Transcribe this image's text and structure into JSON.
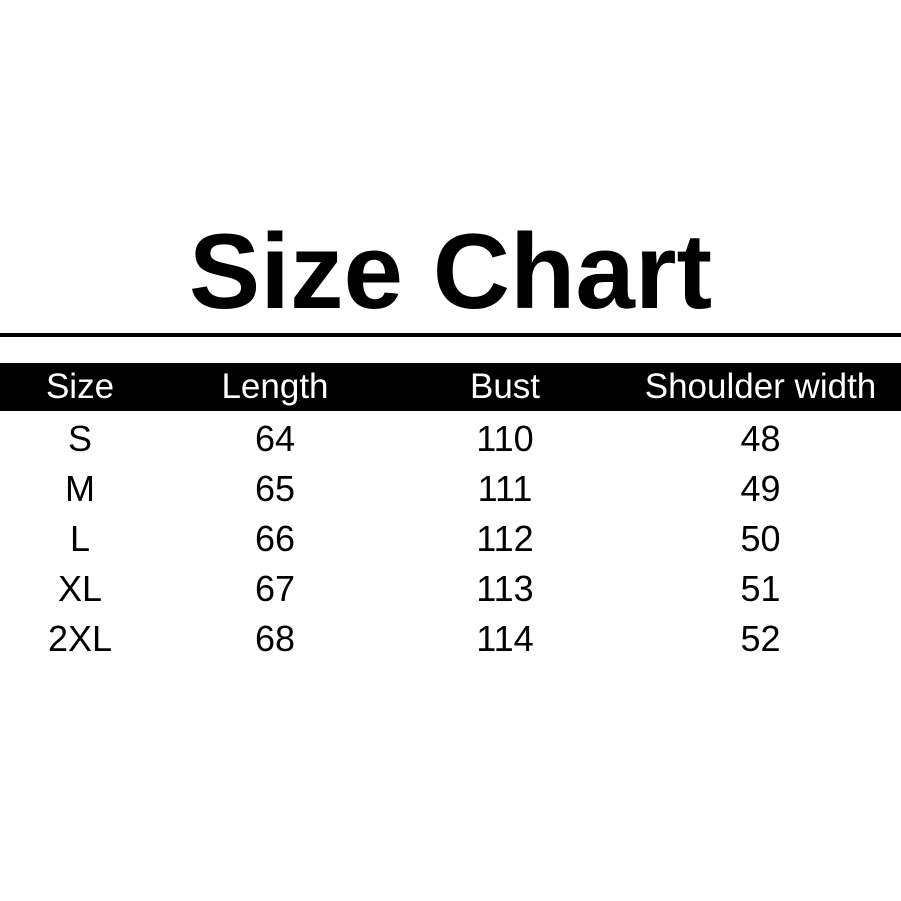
{
  "title": "Size Chart",
  "colors": {
    "background": "#ffffff",
    "text": "#000000",
    "divider": "#000000",
    "header_background": "#000000",
    "header_text": "#ffffff"
  },
  "chart_data": {
    "type": "table",
    "title": "Size Chart",
    "columns": [
      "Size",
      "Length",
      "Bust",
      "Shoulder width"
    ],
    "rows": [
      [
        "S",
        "64",
        "110",
        "48"
      ],
      [
        "M",
        "65",
        "111",
        "49"
      ],
      [
        "L",
        "66",
        "112",
        "50"
      ],
      [
        "XL",
        "67",
        "113",
        "51"
      ],
      [
        "2XL",
        "68",
        "114",
        "52"
      ]
    ],
    "legend": null,
    "grid": false
  }
}
